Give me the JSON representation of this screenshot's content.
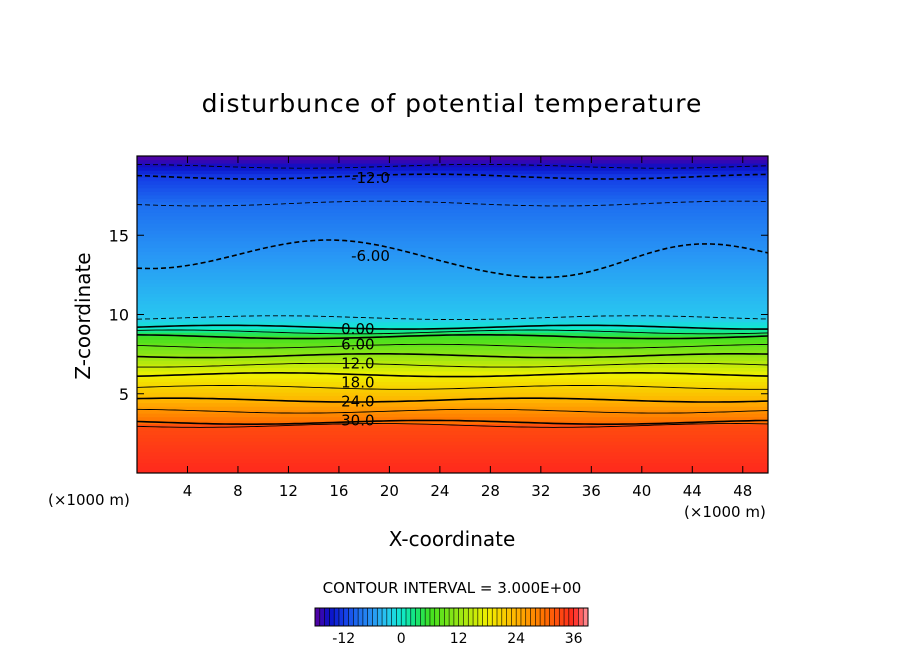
{
  "chart_data": {
    "type": "heatmap",
    "title": "disturbunce of potential temperature",
    "xlabel": "X-coordinate",
    "ylabel": "Z-coordinate",
    "x_unit_left": "(×1000 m)",
    "x_unit_right": "(×1000 m)",
    "xlim": [
      0,
      50
    ],
    "ylim": [
      0,
      20
    ],
    "x_ticks": [
      4,
      8,
      12,
      16,
      20,
      24,
      28,
      32,
      36,
      40,
      44,
      48
    ],
    "y_ticks": [
      5,
      10,
      15
    ],
    "contour_interval_text": "CONTOUR INTERVAL = 3.000E+00",
    "contour_interval": 3,
    "profile": [
      {
        "z": 0,
        "value": 36
      },
      {
        "z": 3.0,
        "value": 33
      },
      {
        "z": 3.2,
        "value": 30
      },
      {
        "z": 4.6,
        "value": 24
      },
      {
        "z": 6.2,
        "value": 18
      },
      {
        "z": 7.4,
        "value": 12
      },
      {
        "z": 8.6,
        "value": 6
      },
      {
        "z": 9.2,
        "value": 0
      },
      {
        "z": 9.8,
        "value": -3
      },
      {
        "z": 13.8,
        "value": -6
      },
      {
        "z": 17.0,
        "value": -9
      },
      {
        "z": 18.7,
        "value": -12
      },
      {
        "z": 20.0,
        "value": -18
      }
    ],
    "contour_labels": [
      {
        "text": "-12.0",
        "x": 18.5,
        "z": 18.6
      },
      {
        "text": "-6.00",
        "x": 18.5,
        "z": 13.7
      },
      {
        "text": "0.00",
        "x": 17.5,
        "z": 9.1
      },
      {
        "text": "6.00",
        "x": 17.5,
        "z": 8.1
      },
      {
        "text": "12.0",
        "x": 17.5,
        "z": 6.9
      },
      {
        "text": "18.0",
        "x": 17.5,
        "z": 5.7
      },
      {
        "text": "24.0",
        "x": 17.5,
        "z": 4.5
      },
      {
        "text": "30.0",
        "x": 17.5,
        "z": 3.3
      }
    ],
    "colorbar": {
      "min": -18,
      "max": 39,
      "tick_labels": [
        "-12",
        "0",
        "12",
        "24",
        "36"
      ],
      "tick_values": [
        -12,
        0,
        12,
        24,
        36
      ]
    },
    "colors": {
      "low": "#0a10c8",
      "mid_low": "#2aa0f0",
      "zero": "#10e8d0",
      "mid": "#40e020",
      "mid_high": "#f0f000",
      "high": "#ff8000",
      "max": "#ff2020"
    }
  }
}
